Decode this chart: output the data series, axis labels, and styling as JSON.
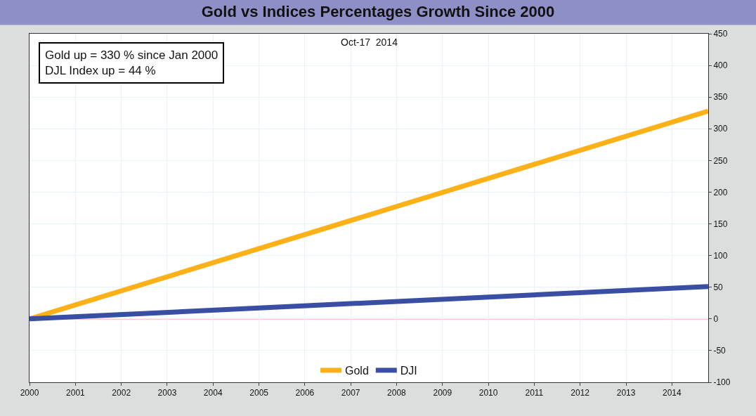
{
  "chart_data": {
    "type": "line",
    "title": "Gold vs Indices Percentages Growth Since 2000",
    "annotations": [
      "Oct-17  2014",
      "Gold up = 330 % since Jan 2000\nDJL Index up = 44 %"
    ],
    "x": [
      "2000-01-01",
      "2014-10-17"
    ],
    "series": [
      {
        "name": "Gold",
        "color": "#fbb117",
        "values": [
          0,
          328
        ]
      },
      {
        "name": "DJI",
        "color": "#3a4fa3",
        "values": [
          0,
          51
        ]
      }
    ],
    "xlim": [
      "2000-01-01",
      "2014-10-17"
    ],
    "xticks": [
      "2000",
      "2001",
      "2002",
      "2003",
      "2004",
      "2005",
      "2006",
      "2007",
      "2008",
      "2009",
      "2010",
      "2011",
      "2012",
      "2013",
      "2014"
    ],
    "ylim": [
      -100,
      450
    ],
    "yticks": [
      -100,
      -50,
      0,
      50,
      100,
      150,
      200,
      250,
      300,
      350,
      400,
      450
    ],
    "ref_lines": [
      {
        "axis": "y",
        "value": 0,
        "color": "#e8505b"
      }
    ],
    "grid": true,
    "legend": "bottom",
    "marker": "none",
    "line_style": "solid"
  }
}
